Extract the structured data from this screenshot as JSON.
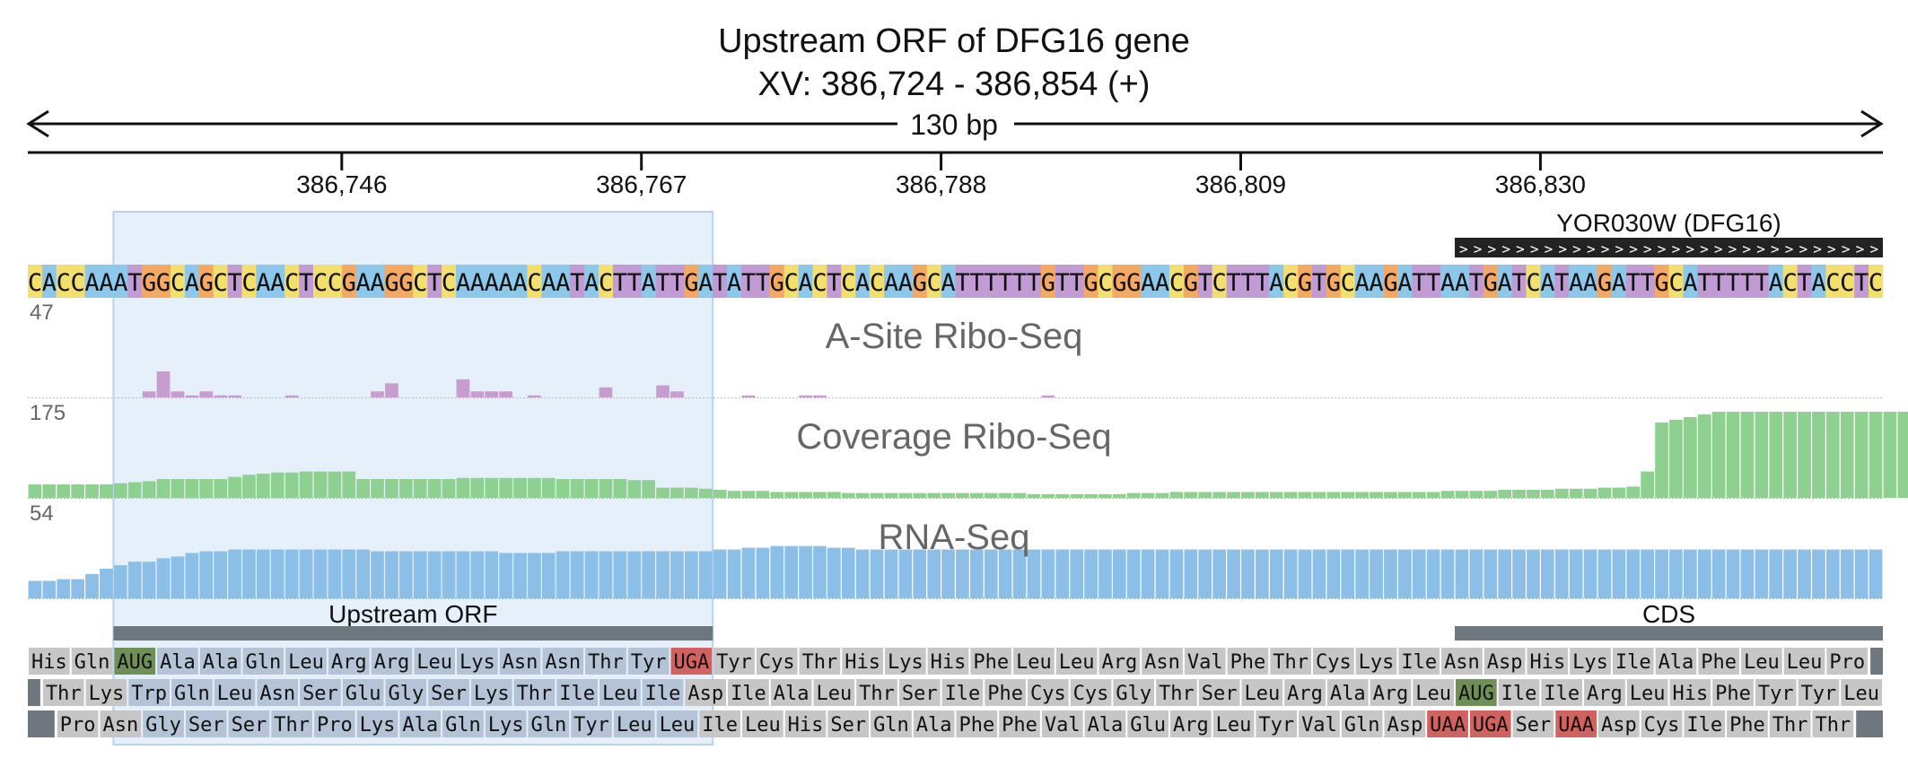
{
  "title": {
    "line1": "Upstream ORF of DFG16 gene",
    "line2": "XV: 386,724 - 386,854 (+)"
  },
  "ruler": {
    "length_label": "130 bp",
    "start": 386724,
    "end": 386854,
    "ticks": [
      {
        "pos": 386746,
        "label": "386,746"
      },
      {
        "pos": 386767,
        "label": "386,767"
      },
      {
        "pos": 386788,
        "label": "386,788"
      },
      {
        "pos": 386809,
        "label": "386,809"
      },
      {
        "pos": 386830,
        "label": "386,830"
      }
    ]
  },
  "gene_feature": {
    "label": "YOR030W (DFG16)",
    "start_index": 100,
    "end_index": 130,
    "strand": "+"
  },
  "sequence": "CACCAAATGGCAGCTCAACTCCGAAGGCTCAAAAACAATACTTATTGATATTGCACTCACAAGCATTTTTTGTTGCGGAACGTCTTTACGTGCAAGATTAATGATCATAAGATTGCATTTTTACTACCTC",
  "nucleotide_colors": {
    "A": "#8dc8ea",
    "C": "#f3df6e",
    "G": "#f4a861",
    "T": "#c19bd4"
  },
  "highlight_region": {
    "start_index": 6,
    "end_index": 48,
    "color": "#dcebf8"
  },
  "tracks": [
    {
      "label": "A-Site Ribo-Seq",
      "max_label": "47",
      "max": 47,
      "color": "#c79ccf",
      "values": [
        0,
        0,
        0,
        0,
        0,
        0,
        0,
        0,
        3,
        13,
        3,
        1,
        3,
        1,
        1,
        0,
        0,
        0,
        1,
        0,
        0,
        0,
        0,
        0,
        3,
        7,
        0,
        0,
        0,
        0,
        9,
        3,
        3,
        3,
        0,
        1,
        0,
        0,
        0,
        0,
        5,
        0,
        0,
        0,
        6,
        3,
        0,
        0,
        0,
        0,
        1,
        0,
        0,
        0,
        1,
        1,
        0,
        0,
        0,
        0,
        0,
        0,
        0,
        0,
        0,
        0,
        0,
        0,
        0,
        0,
        0,
        1,
        0,
        0,
        0,
        0,
        0,
        0,
        0,
        0,
        0,
        0,
        0,
        0,
        0,
        0,
        0,
        0,
        0,
        0,
        0,
        0,
        0,
        0,
        0,
        0,
        0,
        0,
        0,
        0,
        0,
        0,
        0,
        0,
        0,
        0,
        0,
        0,
        0,
        0,
        0,
        0,
        0,
        0,
        0,
        0,
        0,
        0,
        0,
        0,
        0,
        0,
        0,
        0,
        0,
        0,
        0,
        0,
        0,
        0
      ]
    },
    {
      "label": "Coverage Ribo-Seq",
      "max_label": "175",
      "max": 175,
      "color": "#8dd08f",
      "values": [
        25,
        25,
        25,
        25,
        25,
        25,
        27,
        29,
        31,
        35,
        35,
        35,
        35,
        35,
        39,
        43,
        45,
        47,
        47,
        49,
        49,
        49,
        49,
        35,
        35,
        35,
        35,
        35,
        35,
        35,
        37,
        37,
        37,
        37,
        37,
        37,
        37,
        35,
        35,
        35,
        35,
        35,
        33,
        33,
        19,
        19,
        19,
        17,
        15,
        13,
        13,
        13,
        11,
        11,
        11,
        11,
        11,
        9,
        9,
        9,
        9,
        9,
        9,
        9,
        9,
        9,
        9,
        9,
        9,
        9,
        7,
        7,
        7,
        7,
        7,
        7,
        7,
        9,
        9,
        9,
        11,
        11,
        11,
        11,
        11,
        11,
        11,
        11,
        11,
        11,
        11,
        11,
        11,
        11,
        11,
        11,
        11,
        11,
        11,
        13,
        13,
        13,
        13,
        15,
        15,
        15,
        15,
        17,
        17,
        17,
        19,
        19,
        21,
        49,
        140,
        145,
        150,
        155,
        160,
        160,
        160,
        160,
        160,
        160,
        160,
        160,
        160,
        160,
        160,
        160,
        160,
        160
      ]
    },
    {
      "label": "RNA-Seq",
      "max_label": "54",
      "max": 54,
      "color": "#8cbfe7",
      "values": [
        10,
        10,
        11,
        11,
        14,
        17,
        19,
        21,
        21,
        23,
        24,
        26,
        27,
        27,
        28,
        28,
        28,
        28,
        28,
        28,
        28,
        28,
        28,
        28,
        27,
        27,
        27,
        27,
        27,
        27,
        27,
        27,
        27,
        26,
        26,
        26,
        26,
        27,
        27,
        27,
        27,
        27,
        27,
        27,
        27,
        27,
        27,
        27,
        28,
        28,
        29,
        29,
        30,
        30,
        30,
        30,
        29,
        29,
        28,
        28,
        28,
        28,
        28,
        28,
        28,
        28,
        28,
        28,
        28,
        28,
        28,
        28,
        28,
        28,
        28,
        28,
        28,
        28,
        28,
        28,
        28,
        28,
        28,
        28,
        28,
        28,
        28,
        28,
        28,
        28,
        28,
        28,
        28,
        28,
        28,
        28,
        28,
        28,
        28,
        28,
        28,
        28,
        28,
        28,
        28,
        28,
        28,
        28,
        28,
        28,
        28,
        28,
        28,
        28,
        28,
        28,
        28,
        28,
        28,
        28,
        28,
        28,
        28,
        28,
        28,
        28,
        28,
        28,
        28,
        28
      ]
    }
  ],
  "features": [
    {
      "label": "Upstream ORF",
      "start_index": 6,
      "end_index": 48
    },
    {
      "label": "CDS",
      "start_index": 100,
      "end_index": 130
    }
  ],
  "translation_frames": [
    {
      "offset": 0,
      "amino_acids": [
        "His",
        "Gln",
        "AUG",
        "Ala",
        "Ala",
        "Gln",
        "Leu",
        "Arg",
        "Arg",
        "Leu",
        "Lys",
        "Asn",
        "Asn",
        "Thr",
        "Tyr",
        "UGA",
        "Tyr",
        "Cys",
        "Thr",
        "His",
        "Lys",
        "His",
        "Phe",
        "Leu",
        "Leu",
        "Arg",
        "Asn",
        "Val",
        "Phe",
        "Thr",
        "Cys",
        "Lys",
        "Ile",
        "Asn",
        "Asp",
        "His",
        "Lys",
        "Ile",
        "Ala",
        "Phe",
        "Leu",
        "Leu",
        "Pro"
      ]
    },
    {
      "offset": 1,
      "amino_acids": [
        "Thr",
        "Lys",
        "Trp",
        "Gln",
        "Leu",
        "Asn",
        "Ser",
        "Glu",
        "Gly",
        "Ser",
        "Lys",
        "Thr",
        "Ile",
        "Leu",
        "Ile",
        "Asp",
        "Ile",
        "Ala",
        "Leu",
        "Thr",
        "Ser",
        "Ile",
        "Phe",
        "Cys",
        "Cys",
        "Gly",
        "Thr",
        "Ser",
        "Leu",
        "Arg",
        "Ala",
        "Arg",
        "Leu",
        "AUG",
        "Ile",
        "Ile",
        "Arg",
        "Leu",
        "His",
        "Phe",
        "Tyr",
        "Tyr",
        "Leu"
      ]
    },
    {
      "offset": 2,
      "amino_acids": [
        "Pro",
        "Asn",
        "Gly",
        "Ser",
        "Ser",
        "Thr",
        "Pro",
        "Lys",
        "Ala",
        "Gln",
        "Lys",
        "Gln",
        "Tyr",
        "Leu",
        "Leu",
        "Ile",
        "Leu",
        "His",
        "Ser",
        "Gln",
        "Ala",
        "Phe",
        "Phe",
        "Val",
        "Ala",
        "Glu",
        "Arg",
        "Leu",
        "Tyr",
        "Val",
        "Gln",
        "Asp",
        "UAA",
        "UGA",
        "Ser",
        "UAA",
        "Asp",
        "Cys",
        "Ile",
        "Phe",
        "Thr",
        "Thr"
      ]
    }
  ],
  "codon_colors": {
    "start": "#6e8f55",
    "stop": "#d1625f",
    "normal": "#c6c6c6",
    "normal_highlight": "#b4c4d6"
  }
}
